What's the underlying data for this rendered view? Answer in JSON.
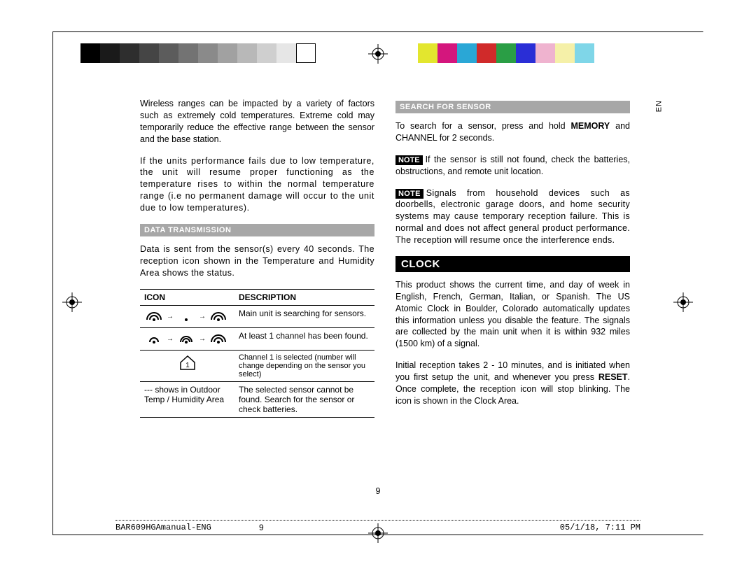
{
  "printmarks": {
    "grayscale_swatches": [
      "#000000",
      "#1a1a1a",
      "#2e2e2e",
      "#454545",
      "#5c5c5c",
      "#737373",
      "#8a8a8a",
      "#a1a1a1",
      "#b8b8b8",
      "#cfcfcf",
      "#e6e6e6",
      "#ffffff"
    ],
    "color_swatches": [
      "#e3e62e",
      "#d4167d",
      "#2aa7d6",
      "#d02a2a",
      "#2a9e45",
      "#2a2ed6",
      "#efb3cf",
      "#f5f0a8",
      "#7fd6e8"
    ],
    "lang_tag": "EN"
  },
  "left_col": {
    "para1": "Wireless ranges can be impacted by a variety of factors such as extremely cold temperatures. Extreme cold may temporarily reduce the effective range between the sensor and the base station.",
    "para2": "If the units performance fails due to low temperature, the unit will resume proper functioning as the temperature rises to within the normal temperature range (i.e no permanent damage will occur to the unit due to low temperatures).",
    "data_transmission_heading": "DATA TRANSMISSION",
    "data_transmission_text": "Data is sent from the sensor(s) every 40 seconds. The reception icon shown in the Temperature and Humidity Area shows the status.",
    "table": {
      "col1_header": "ICON",
      "col2_header": "DESCRIPTION",
      "row1_desc": "Main unit is searching for sensors.",
      "row2_desc": "At least 1 channel has been found.",
      "row3_desc": "Channel 1 is selected (number will change depending on the sensor you select)",
      "row4_icon_text": "--- shows in Outdoor Temp / Humidity Area",
      "row4_desc": "The selected sensor cannot be found. Search for the sensor or check batteries."
    }
  },
  "right_col": {
    "search_heading": "SEARCH FOR SENSOR",
    "search_text_1": "To search for a sensor, press and hold ",
    "search_text_bold": "MEMORY",
    "search_text_2": " and CHANNEL for 2 seconds.",
    "note1_label": "NOTE",
    "note1_text": "If the sensor is still not found, check the batteries, obstructions, and remote unit location.",
    "note2_label": "NOTE",
    "note2_text": "Signals from household devices such as doorbells, electronic garage doors, and home security systems may cause temporary reception failure. This is normal and does not affect general product performance. The reception will resume once the interference ends.",
    "clock_heading": "CLOCK",
    "clock_para1": "This product shows the current time, and day of week in English, French, German, Italian, or Spanish.  The US Atomic Clock in Boulder, Colorado automatically updates this information unless you disable the feature.  The signals are collected by the main unit when it is within 932 miles (1500 km) of a signal.",
    "clock_para2_a": "Initial reception takes 2 - 10 minutes, and is initiated when you first setup the unit, and whenever you press ",
    "clock_para2_bold": "RESET",
    "clock_para2_b": ". Once complete, the reception icon will stop blinking. The icon is shown in the Clock Area."
  },
  "footer": {
    "filename": "BAR609HGAmanual-ENG",
    "page_small": "9",
    "timestamp": "05/1/18, 7:11 PM",
    "page_center": "9"
  }
}
